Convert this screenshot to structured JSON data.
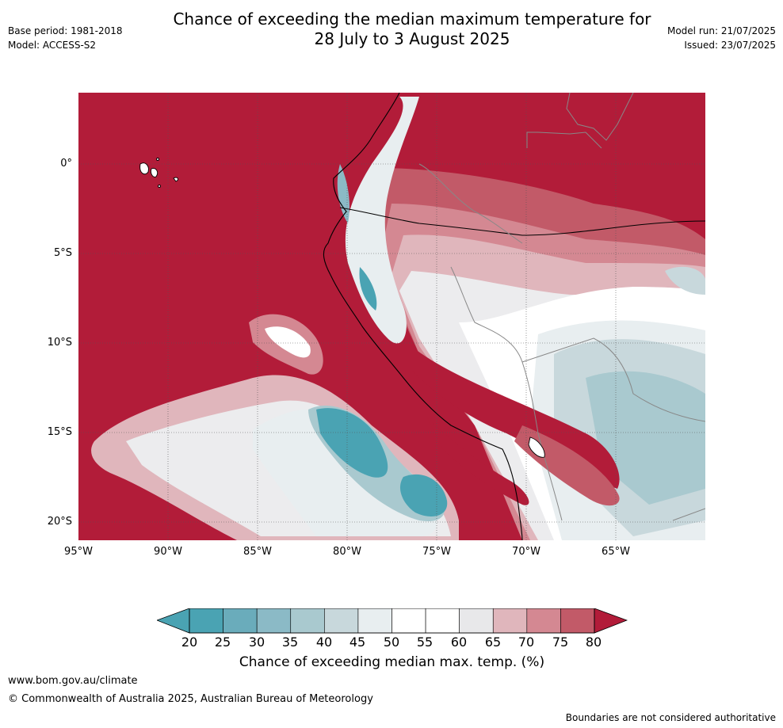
{
  "header": {
    "title_line1": "Chance of exceeding the median maximum temperature for",
    "title_line2": "28 July to 3 August 2025",
    "base_period": "Base period: 1981-2018",
    "model": "Model: ACCESS-S2",
    "model_run": "Model run: 21/07/2025",
    "issued": "Issued: 23/07/2025"
  },
  "map": {
    "lat_labels": [
      "0°",
      "5°S",
      "10°S",
      "15°S",
      "20°S"
    ],
    "lon_labels": [
      "95°W",
      "90°W",
      "85°W",
      "80°W",
      "75°W",
      "70°W",
      "65°W"
    ]
  },
  "colorbar": {
    "ticks": [
      "20",
      "25",
      "30",
      "35",
      "40",
      "45",
      "50",
      "55",
      "60",
      "65",
      "70",
      "75",
      "80"
    ],
    "colors": [
      "#4aa3b3",
      "#6aacbb",
      "#8bbac6",
      "#a9c9cf",
      "#c8d8dc",
      "#e8eef0",
      "#ffffff",
      "#ffffff",
      "#e8e8ea",
      "#e0b6bc",
      "#d48892",
      "#c25a68",
      "#b82f47"
    ],
    "under_color": "#4aa3b3",
    "over_color": "#b21c39",
    "label": "Chance of exceeding median max. temp. (%)"
  },
  "footer": {
    "url": "www.bom.gov.au/climate",
    "copyright": "© Commonwealth of Australia 2025, Australian Bureau of Meteorology",
    "note": "Boundaries are not considered authoritative"
  }
}
